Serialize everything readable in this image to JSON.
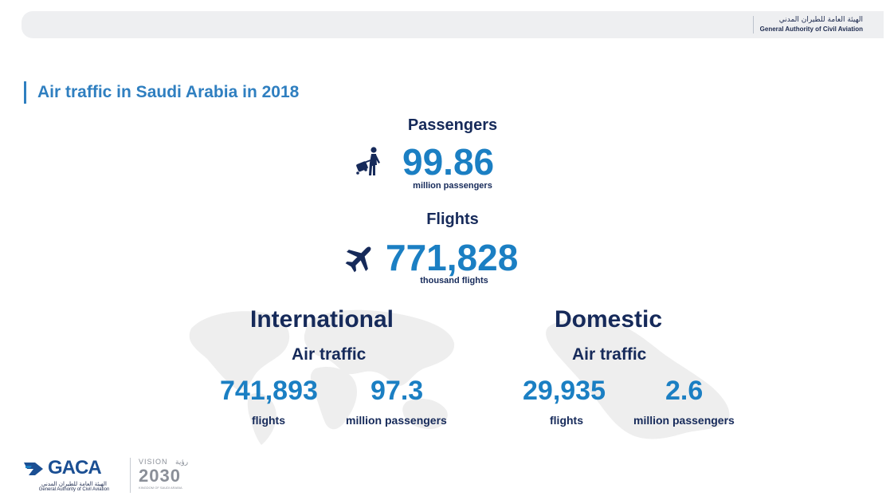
{
  "header": {
    "authority_ar": "الهيئة العامة للطيران المدني",
    "authority_en": "General Authority of Civil Aviation"
  },
  "title": "Air traffic in Saudi Arabia in 2018",
  "passengers": {
    "label": "Passengers",
    "value": "99.86",
    "unit": "million passengers",
    "icon": "traveler-with-suitcase-icon"
  },
  "flights": {
    "label": "Flights",
    "value": "771,828",
    "unit": "thousand flights",
    "icon": "airplane-icon"
  },
  "international": {
    "title": "International",
    "subtitle": "Air traffic",
    "flights_value": "741,893",
    "flights_unit": "flights",
    "passengers_value": "97.3",
    "passengers_unit": "million passengers"
  },
  "domestic": {
    "title": "Domestic",
    "subtitle": "Air traffic",
    "flights_value": "29,935",
    "flights_unit": "flights",
    "passengers_value": "2.6",
    "passengers_unit": "million passengers"
  },
  "footer": {
    "gaca_word": "GACA",
    "gaca_ar": "الهيئة العامة للطيران المدني",
    "gaca_en": "General Authority of Civil Aviation",
    "vision_label": "VISION",
    "vision_ar": "رؤية",
    "vision_year": "2030",
    "vision_kingdom": "KINGDOM OF SAUDI ARABIA"
  },
  "colors": {
    "navy": "#162a5a",
    "blue": "#1b7fc3",
    "title_blue": "#2f7fc0",
    "map_gray": "#eeeeee"
  }
}
